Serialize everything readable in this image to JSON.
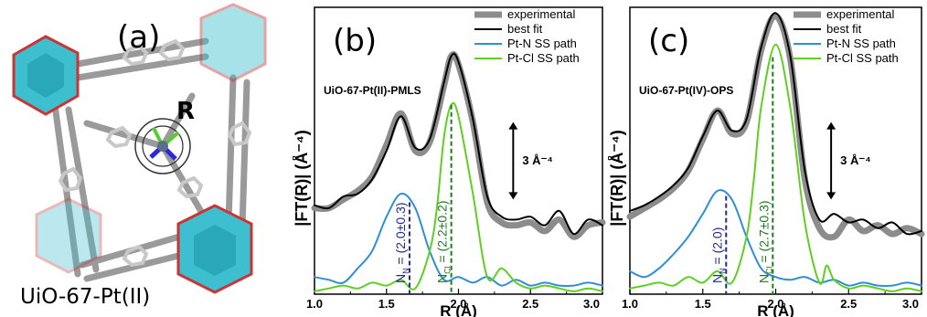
{
  "panel_a": {
    "label": "(a)",
    "caption": "UiO-67-Pt(II)",
    "r_label": "R"
  },
  "colors": {
    "experimental": "#8c8c8c",
    "best_fit": "#000000",
    "pt_n": "#2e8fd4",
    "pt_cl": "#5fcf20",
    "n_marker": "#1f2a8a",
    "cl_marker": "#1e7a1e",
    "cluster": "#3dbfcf",
    "cluster_edge": "#cc3333"
  },
  "chart_data": [
    {
      "type": "line",
      "panel_label": "(b)",
      "sample": "UiO-67-Pt(II)-PMLS",
      "ylabel": "|FT(R)| (Å⁻⁴)",
      "xlabel": "R (Å)",
      "xlim": [
        1.0,
        3.0
      ],
      "ylim": [
        0,
        10
      ],
      "xticks": [
        "1.0",
        "1.5",
        "2.0",
        "2.5",
        "3.0"
      ],
      "scale_bar": "3 Å⁻⁴",
      "legend": [
        "experimental",
        "best fit",
        "Pt-N SS path",
        "Pt-Cl SS path"
      ],
      "legend_position": "top-right",
      "series": [
        {
          "name": "experimental",
          "x": [
            1.0,
            1.1,
            1.2,
            1.3,
            1.4,
            1.5,
            1.6,
            1.7,
            1.8,
            1.9,
            1.95,
            2.0,
            2.1,
            2.2,
            2.3,
            2.4,
            2.5,
            2.6,
            2.7,
            2.8,
            2.9,
            3.0
          ],
          "y": [
            3.0,
            3.0,
            3.3,
            3.6,
            4.1,
            5.2,
            6.3,
            5.0,
            5.3,
            7.3,
            8.3,
            8.0,
            6.0,
            3.2,
            2.5,
            2.4,
            2.5,
            2.2,
            2.6,
            2.0,
            2.4,
            2.5
          ]
        },
        {
          "name": "best fit",
          "x": [
            1.0,
            1.1,
            1.2,
            1.3,
            1.4,
            1.5,
            1.6,
            1.7,
            1.8,
            1.9,
            1.95,
            2.0,
            2.1,
            2.2,
            2.3,
            2.4,
            2.5,
            2.6,
            2.7,
            2.8,
            2.9,
            3.0
          ],
          "y": [
            3.1,
            3.0,
            3.4,
            3.5,
            4.0,
            5.0,
            6.2,
            5.1,
            5.4,
            7.4,
            8.3,
            8.1,
            6.1,
            3.4,
            2.7,
            2.6,
            2.7,
            2.4,
            2.9,
            2.1,
            2.6,
            2.4
          ]
        },
        {
          "name": "Pt-N SS path",
          "x": [
            1.0,
            1.1,
            1.2,
            1.3,
            1.4,
            1.5,
            1.6,
            1.7,
            1.8,
            1.9,
            2.0,
            2.1,
            2.2,
            2.3,
            2.4,
            2.5,
            2.6,
            2.7,
            2.8,
            2.9,
            3.0
          ],
          "y": [
            0.6,
            0.5,
            0.4,
            0.9,
            1.5,
            2.7,
            3.5,
            3.0,
            1.5,
            0.5,
            0.6,
            0.4,
            0.6,
            0.3,
            0.5,
            0.3,
            0.4,
            0.3,
            0.3,
            0.4,
            0.3
          ]
        },
        {
          "name": "Pt-Cl SS path",
          "x": [
            1.0,
            1.1,
            1.2,
            1.3,
            1.4,
            1.5,
            1.6,
            1.7,
            1.8,
            1.85,
            1.9,
            1.95,
            2.0,
            2.1,
            2.2,
            2.3,
            2.4,
            2.5,
            2.6,
            2.7,
            2.8,
            2.9,
            3.0
          ],
          "y": [
            0.1,
            0.2,
            0.3,
            0.2,
            0.4,
            0.3,
            0.5,
            0.2,
            1.5,
            3.0,
            5.5,
            6.6,
            6.2,
            3.5,
            0.6,
            0.9,
            0.4,
            0.2,
            0.3,
            0.2,
            0.1,
            0.2,
            0.1
          ]
        }
      ],
      "markers": [
        {
          "x": 1.66,
          "series": "Pt-N SS path",
          "text": "N",
          "sub": "N",
          "value": " = (2.0±0.3)"
        },
        {
          "x": 1.95,
          "series": "Pt-Cl SS path",
          "text": "N",
          "sub": "Cl",
          "value": " = (2.2±0.2)"
        }
      ]
    },
    {
      "type": "line",
      "panel_label": "(c)",
      "sample": "UiO-67-Pt(IV)-OPS",
      "ylabel": "|FT(R)| (Å⁻⁴)",
      "xlabel": "R (Å)",
      "xlim": [
        1.0,
        3.0
      ],
      "ylim": [
        0,
        10
      ],
      "xticks": [
        "1.0",
        "1.5",
        "2.0",
        "2.5",
        "3.0"
      ],
      "scale_bar": "3 Å⁻⁴",
      "legend": [
        "experimental",
        "best fit",
        "Pt-N SS path",
        "Pt-Cl SS path"
      ],
      "legend_position": "top-right",
      "series": [
        {
          "name": "experimental",
          "x": [
            1.0,
            1.1,
            1.2,
            1.3,
            1.4,
            1.5,
            1.6,
            1.7,
            1.8,
            1.9,
            2.0,
            2.1,
            2.2,
            2.3,
            2.4,
            2.5,
            2.6,
            2.7,
            2.8,
            2.9,
            3.0
          ],
          "y": [
            2.7,
            3.0,
            3.3,
            3.7,
            4.3,
            5.4,
            6.4,
            5.6,
            6.0,
            8.5,
            9.7,
            8.2,
            4.0,
            2.3,
            2.0,
            2.6,
            2.2,
            2.4,
            2.1,
            2.3,
            2.1
          ]
        },
        {
          "name": "best fit",
          "x": [
            1.0,
            1.1,
            1.2,
            1.3,
            1.4,
            1.5,
            1.6,
            1.7,
            1.8,
            1.9,
            2.0,
            2.1,
            2.2,
            2.3,
            2.4,
            2.5,
            2.6,
            2.7,
            2.8,
            2.9,
            3.0
          ],
          "y": [
            2.9,
            3.1,
            3.4,
            3.8,
            4.4,
            5.5,
            6.4,
            5.7,
            6.1,
            8.6,
            9.8,
            8.3,
            4.3,
            2.6,
            2.8,
            2.5,
            2.6,
            2.3,
            2.5,
            2.1,
            2.2
          ]
        },
        {
          "name": "Pt-N SS path",
          "x": [
            1.0,
            1.1,
            1.2,
            1.3,
            1.4,
            1.5,
            1.6,
            1.7,
            1.8,
            1.9,
            2.0,
            2.1,
            2.2,
            2.3,
            2.4,
            2.5,
            2.6,
            2.7,
            2.8,
            2.9,
            3.0
          ],
          "y": [
            0.8,
            0.6,
            0.9,
            1.4,
            2.0,
            2.8,
            3.6,
            3.3,
            2.0,
            0.9,
            0.6,
            0.5,
            0.6,
            0.4,
            0.5,
            0.3,
            0.4,
            0.3,
            0.3,
            0.4,
            0.3
          ]
        },
        {
          "name": "Pt-Cl SS path",
          "x": [
            1.0,
            1.1,
            1.2,
            1.3,
            1.4,
            1.5,
            1.6,
            1.7,
            1.8,
            1.85,
            1.9,
            2.0,
            2.1,
            2.2,
            2.3,
            2.35,
            2.4,
            2.5,
            2.6,
            2.7,
            2.8,
            2.9,
            3.0
          ],
          "y": [
            0.2,
            0.3,
            0.4,
            0.3,
            0.6,
            0.4,
            0.8,
            0.4,
            2.0,
            4.0,
            6.5,
            8.7,
            6.5,
            2.5,
            0.4,
            1.0,
            0.5,
            0.2,
            0.3,
            0.2,
            0.1,
            0.2,
            0.1
          ]
        }
      ],
      "markers": [
        {
          "x": 1.66,
          "series": "Pt-N SS path",
          "text": "N",
          "sub": "N",
          "value": " = (2.0)"
        },
        {
          "x": 1.98,
          "series": "Pt-Cl SS path",
          "text": "N",
          "sub": "Cl",
          "value": " = (2.7±0.3)"
        }
      ]
    }
  ]
}
